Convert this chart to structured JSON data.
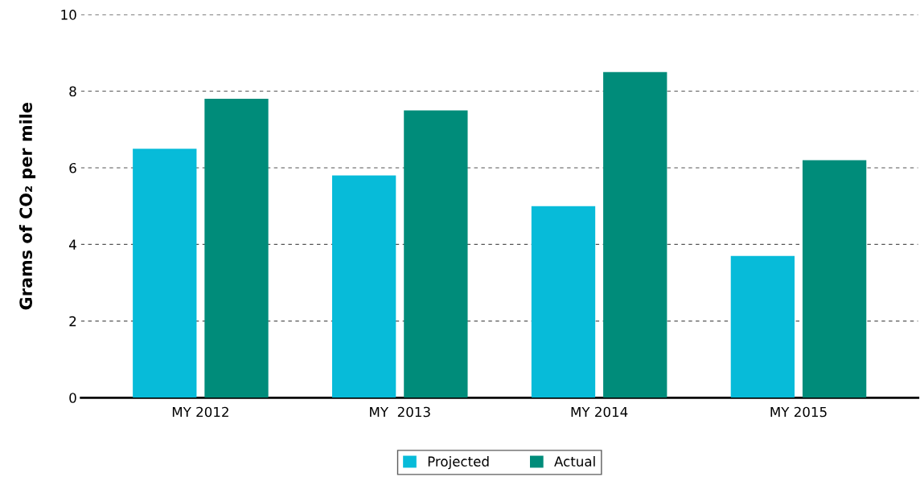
{
  "chart_data": {
    "type": "bar",
    "ylabel": "Grams of CO₂ per mile",
    "categories": [
      "MY 2012",
      "MY  2013",
      "MY 2014",
      "MY 2015"
    ],
    "series": [
      {
        "name": "Projected",
        "color": "#07bbd9",
        "values": [
          6.5,
          5.8,
          5.0,
          3.7
        ]
      },
      {
        "name": "Actual",
        "color": "#008c7a",
        "values": [
          7.8,
          7.5,
          8.5,
          6.2
        ]
      }
    ],
    "ylim": [
      0,
      10
    ],
    "yticks": [
      0,
      2,
      4,
      6,
      8,
      10
    ],
    "grid": "y",
    "legend": "bottom"
  }
}
